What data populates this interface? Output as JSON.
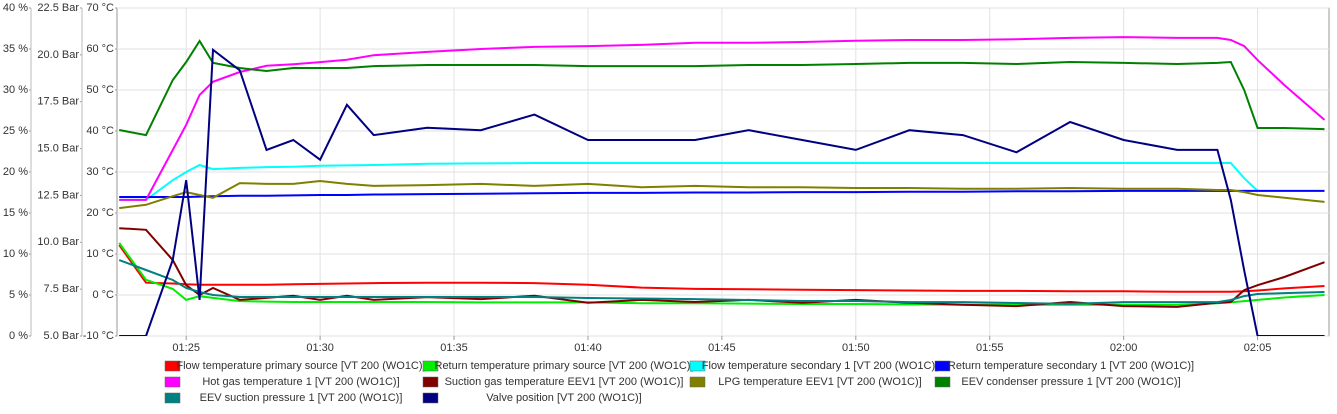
{
  "chart_data": {
    "type": "line",
    "x": [
      "01:22:30",
      "01:23:30",
      "01:24:30",
      "01:25:00",
      "01:25:30",
      "01:26:00",
      "01:27:00",
      "01:28:00",
      "01:29:00",
      "01:30:00",
      "01:31:00",
      "01:32:00",
      "01:34:00",
      "01:36:00",
      "01:38:00",
      "01:40:00",
      "01:42:00",
      "01:44:00",
      "01:46:00",
      "01:48:00",
      "01:50:00",
      "01:52:00",
      "01:54:00",
      "01:56:00",
      "01:58:00",
      "02:00:00",
      "02:02:00",
      "02:03:30",
      "02:04:00",
      "02:04:30",
      "02:05:00",
      "02:06:00",
      "02:07:30"
    ],
    "xlim": [
      "01:22:25",
      "02:07:40"
    ],
    "xticks": [
      "01:25",
      "01:30",
      "01:35",
      "01:40",
      "01:45",
      "01:50",
      "01:55",
      "02:00",
      "02:05"
    ],
    "ylim": [
      -10,
      70
    ],
    "yticks": [
      {
        "value": -10,
        "label": "-10 °C"
      },
      {
        "value": 0,
        "label": "0 °C"
      },
      {
        "value": 10,
        "label": "10 °C"
      },
      {
        "value": 20,
        "label": "20 °C"
      },
      {
        "value": 30,
        "label": "30 °C"
      },
      {
        "value": 40,
        "label": "40 °C"
      },
      {
        "value": 50,
        "label": "50 °C"
      },
      {
        "value": 60,
        "label": "60 °C"
      },
      {
        "value": 70,
        "label": "70 °C"
      }
    ],
    "y2lim": [
      5,
      22.5
    ],
    "y2ticks": [
      {
        "value": 5,
        "label": "5.0 Bar"
      },
      {
        "value": 7.5,
        "label": "7.5 Bar"
      },
      {
        "value": 10,
        "label": "10.0 Bar"
      },
      {
        "value": 12.5,
        "label": "12.5 Bar"
      },
      {
        "value": 15,
        "label": "15.0 Bar"
      },
      {
        "value": 17.5,
        "label": "17.5 Bar"
      },
      {
        "value": 20,
        "label": "20.0 Bar"
      },
      {
        "value": 22.5,
        "label": "22.5 Bar"
      }
    ],
    "y3lim": [
      0,
      40
    ],
    "y3ticks": [
      {
        "value": 0,
        "label": "0 %"
      },
      {
        "value": 5,
        "label": "5 %"
      },
      {
        "value": 10,
        "label": "10 %"
      },
      {
        "value": 15,
        "label": "15 %"
      },
      {
        "value": 20,
        "label": "20 %"
      },
      {
        "value": 25,
        "label": "25 %"
      },
      {
        "value": 30,
        "label": "30 %"
      },
      {
        "value": 35,
        "label": "35 %"
      },
      {
        "value": 40,
        "label": "40 %"
      }
    ],
    "grid": true,
    "legend": "bottom",
    "series": [
      {
        "name": "Flow temperature primary source [VT 200 (WO1C)]",
        "color": "#ff0000",
        "values": [
          12.2,
          3,
          2.8,
          2.6,
          2.5,
          2.5,
          2.5,
          2.5,
          2.6,
          2.7,
          2.8,
          2.9,
          3,
          3,
          2.9,
          2.5,
          1.8,
          1.5,
          1.4,
          1.3,
          1.2,
          1.1,
          1,
          1,
          0.9,
          0.9,
          0.8,
          0.8,
          0.8,
          0.9,
          1.1,
          1.6,
          2.2
        ]
      },
      {
        "name": "Return temperature primary source [VT 200 (WO1C)]",
        "color": "#00ee00",
        "values": [
          12.7,
          3.7,
          1.5,
          -1.2,
          -0.3,
          -0.7,
          -1.5,
          -1.6,
          -1.7,
          -1.7,
          -1.7,
          -1.7,
          -1.7,
          -1.8,
          -1.8,
          -1.8,
          -2,
          -2,
          -2.1,
          -2.2,
          -2.2,
          -2.3,
          -2.4,
          -2.4,
          -2.4,
          -2.4,
          -2.4,
          -2,
          -1.8,
          -1.5,
          -1.2,
          -0.6,
          0
        ]
      },
      {
        "name": "Flow temperature secondary 1 [VT 200 (WO1C)]",
        "color": "#00ffff",
        "values": [
          23.2,
          23.2,
          28,
          30,
          31.7,
          30.7,
          31,
          31.2,
          31.3,
          31.5,
          31.6,
          31.7,
          32,
          32.1,
          32.2,
          32.2,
          32.2,
          32.2,
          32.2,
          32.2,
          32.2,
          32.2,
          32.2,
          32.2,
          32.2,
          32.2,
          32.2,
          32.2,
          32.2,
          28.5,
          25.4,
          null,
          null
        ]
      },
      {
        "name": "Return temperature secondary 1 [VT 200 (WO1C)]",
        "color": "#0000ff",
        "values": [
          23.9,
          23.9,
          23.9,
          23.9,
          24,
          24.1,
          24.2,
          24.2,
          24.3,
          24.4,
          24.4,
          24.5,
          24.6,
          24.7,
          24.8,
          24.9,
          24.9,
          25,
          25,
          25.1,
          25.1,
          25.2,
          25.2,
          25.3,
          25.3,
          25.4,
          25.4,
          25.4,
          25.4,
          25.4,
          25.4,
          25.4,
          25.4
        ]
      },
      {
        "name": "Hot gas temperature 1 [VT 200 (WO1C)]",
        "color": "#ff00ff",
        "values": [
          23.2,
          23.2,
          35.4,
          41.5,
          48.8,
          52,
          54.4,
          55.9,
          56.3,
          56.8,
          57.4,
          58.5,
          59.3,
          60,
          60.5,
          60.7,
          61,
          61.5,
          61.5,
          61.7,
          62,
          62.2,
          62.2,
          62.4,
          62.7,
          62.9,
          62.7,
          62.7,
          62.2,
          60.7,
          57.3,
          51.2,
          42.7
        ]
      },
      {
        "name": "Suction gas temperature EEV1 [VT 200 (WO1C)]",
        "color": "#800000",
        "values": [
          16.3,
          15.9,
          8.5,
          2.4,
          0,
          1.7,
          -1.2,
          -0.7,
          -0.2,
          -1.2,
          -0.2,
          -1.2,
          -0.5,
          -1,
          -0.2,
          -1.9,
          -1.2,
          -1.7,
          -1.2,
          -1.9,
          -1.2,
          -1.9,
          -2.4,
          -2.7,
          -1.7,
          -2.7,
          -2.9,
          -1.9,
          -1.7,
          1.2,
          2.4,
          4.4,
          8
        ]
      },
      {
        "name": "LPG temperature EEV1 [VT 200 (WO1C)]",
        "color": "#808000",
        "values": [
          21.2,
          22,
          24.1,
          25.1,
          24.4,
          23.7,
          27.3,
          27.1,
          27.1,
          27.8,
          27.1,
          26.6,
          26.8,
          27.1,
          26.6,
          27.1,
          26.3,
          26.6,
          26.3,
          26.3,
          26.1,
          26.1,
          25.9,
          25.9,
          26.1,
          25.9,
          25.9,
          25.6,
          25.6,
          25.1,
          24.4,
          23.7,
          22.7
        ]
      },
      {
        "name": "EEV condenser pressure 1 [VT 200 (WO1C)]",
        "color": "#008000",
        "axis": "y2",
        "values": [
          15.99,
          15.72,
          18.66,
          19.62,
          20.74,
          19.57,
          19.3,
          19.14,
          19.3,
          19.3,
          19.3,
          19.4,
          19.46,
          19.46,
          19.46,
          19.4,
          19.4,
          19.4,
          19.46,
          19.46,
          19.51,
          19.57,
          19.57,
          19.51,
          19.62,
          19.57,
          19.51,
          19.57,
          19.62,
          18.12,
          16.1,
          16.1,
          16.04
        ]
      },
      {
        "name": "EEV suction pressure 1 [VT 200 (WO1C)]",
        "color": "#008080",
        "axis": "y2",
        "values": [
          9.05,
          8.52,
          7.99,
          7.56,
          7.35,
          7.19,
          7.08,
          7.08,
          7.08,
          7.08,
          7.08,
          7.08,
          7.08,
          7.08,
          7.08,
          7.03,
          7,
          6.97,
          6.92,
          6.87,
          6.87,
          6.81,
          6.81,
          6.76,
          6.71,
          6.81,
          6.81,
          6.81,
          6.92,
          7.13,
          7.24,
          7.29,
          7.35
        ]
      },
      {
        "name": "Valve position [VT 200 (WO1C)]",
        "color": "#000080",
        "axis": "y3",
        "values": [
          0,
          0,
          9.3,
          19,
          4.4,
          34.9,
          32.4,
          22.7,
          23.9,
          21.5,
          28.2,
          24.5,
          25.4,
          25.1,
          27,
          23.9,
          23.9,
          23.9,
          25.1,
          23.9,
          22.7,
          25.1,
          24.5,
          22.4,
          26.1,
          23.9,
          22.7,
          22.7,
          16.6,
          8,
          0,
          0,
          0
        ]
      }
    ]
  }
}
